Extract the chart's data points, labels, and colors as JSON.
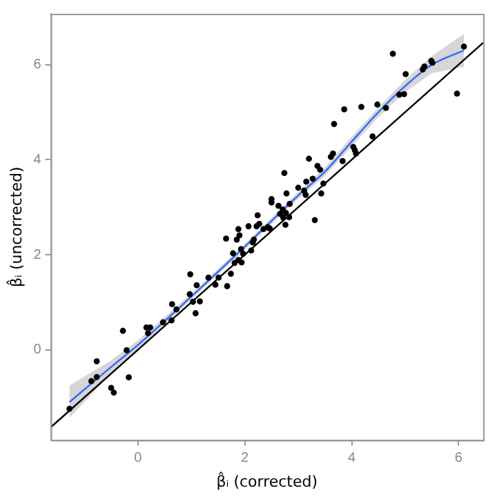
{
  "chart_data": {
    "type": "scatter",
    "xlabel": "β̂ᵢ (corrected)",
    "ylabel": "β̂ᵢ (uncorrected)",
    "xlim": [
      -1.63,
      6.46
    ],
    "ylim": [
      -1.9,
      7.07
    ],
    "xticks": [
      0,
      2,
      4,
      6
    ],
    "yticks": [
      0,
      2,
      4,
      6
    ],
    "grid": false,
    "legend": false,
    "series": [
      {
        "marker": "circle",
        "color": "#000000",
        "x": [
          -1.28,
          -0.87,
          -0.77,
          -0.77,
          -0.5,
          -0.45,
          -0.28,
          -0.21,
          -0.17,
          0.16,
          0.23,
          0.19,
          0.47,
          0.64,
          0.63,
          0.72,
          0.98,
          0.97,
          1.03,
          1.08,
          1.1,
          1.16,
          1.32,
          1.45,
          1.51,
          1.65,
          1.67,
          1.74,
          1.78,
          1.81,
          1.85,
          1.88,
          1.9,
          1.88,
          1.93,
          1.94,
          1.97,
          2.07,
          2.12,
          2.15,
          2.17,
          2.22,
          2.24,
          2.27,
          2.35,
          2.43,
          2.47,
          2.5,
          2.5,
          2.63,
          2.66,
          2.71,
          2.72,
          2.74,
          2.76,
          2.78,
          2.77,
          2.83,
          2.84,
          3.0,
          3.11,
          3.14,
          3.15,
          3.2,
          3.27,
          3.31,
          3.36,
          3.41,
          3.43,
          3.47,
          3.61,
          3.65,
          3.67,
          3.83,
          3.86,
          4.03,
          4.06,
          4.08,
          4.18,
          4.39,
          4.48,
          4.64,
          4.77,
          4.89,
          4.98,
          5.01,
          5.33,
          5.36,
          5.49,
          5.51,
          5.97,
          6.1
        ],
        "values": [
          -1.24,
          -0.66,
          -0.24,
          -0.57,
          -0.8,
          -0.9,
          0.4,
          -0.01,
          -0.58,
          0.47,
          0.47,
          0.35,
          0.58,
          0.96,
          0.62,
          0.85,
          1.59,
          1.17,
          1.01,
          0.77,
          1.36,
          1.02,
          1.52,
          1.37,
          1.52,
          2.34,
          1.34,
          1.6,
          2.03,
          1.83,
          2.32,
          2.54,
          2.41,
          1.89,
          2.12,
          1.84,
          2.02,
          2.6,
          2.09,
          2.26,
          2.32,
          2.6,
          2.83,
          2.65,
          2.54,
          2.58,
          2.55,
          3.17,
          3.1,
          3.03,
          2.86,
          2.95,
          2.78,
          3.72,
          2.63,
          3.29,
          2.88,
          2.79,
          3.07,
          3.41,
          3.35,
          3.26,
          3.54,
          4.02,
          3.6,
          2.73,
          3.87,
          3.79,
          3.29,
          3.5,
          4.06,
          4.13,
          4.75,
          3.97,
          5.06,
          4.27,
          4.2,
          4.13,
          5.11,
          4.49,
          5.16,
          5.09,
          6.23,
          5.37,
          5.38,
          5.8,
          5.9,
          5.96,
          6.08,
          6.04,
          5.39,
          6.38
        ]
      },
      {
        "type": "line",
        "color": "#3366ff",
        "x": [
          -1.28,
          -0.5,
          0,
          1,
          2,
          3,
          3.5,
          4,
          4.5,
          5,
          5.5,
          6.1
        ],
        "values": [
          -1.1,
          -0.36,
          0.1,
          1.12,
          2.17,
          3.25,
          3.75,
          4.38,
          5.0,
          5.55,
          6.0,
          6.3
        ],
        "lower": [
          -1.43,
          -0.5,
          0.0,
          1.06,
          2.11,
          3.18,
          3.66,
          4.28,
          4.9,
          5.42,
          5.82,
          5.95
        ],
        "upper": [
          -0.75,
          -0.22,
          0.2,
          1.18,
          2.23,
          3.32,
          3.84,
          4.48,
          5.1,
          5.68,
          6.18,
          6.65
        ]
      },
      {
        "type": "line",
        "color": "#000000",
        "x": [
          -1.63,
          6.46
        ],
        "values": [
          -1.63,
          6.46
        ]
      }
    ]
  }
}
